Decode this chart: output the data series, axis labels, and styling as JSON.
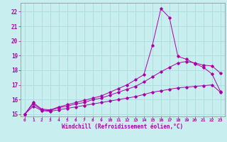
{
  "xlabel": "Windchill (Refroidissement éolien,°C)",
  "bg_color": "#c8eef0",
  "grid_color": "#aadddd",
  "line_color": "#aa00aa",
  "xlim": [
    -0.5,
    23.5
  ],
  "ylim": [
    14.85,
    22.6
  ],
  "yticks": [
    15,
    16,
    17,
    18,
    19,
    20,
    21,
    22
  ],
  "xticks": [
    0,
    1,
    2,
    3,
    4,
    5,
    6,
    7,
    8,
    9,
    10,
    11,
    12,
    13,
    14,
    15,
    16,
    17,
    18,
    19,
    20,
    21,
    22,
    23
  ],
  "line1_x": [
    0,
    1,
    2,
    3,
    4,
    5,
    6,
    7,
    8,
    9,
    10,
    11,
    12,
    13,
    14,
    15,
    16,
    17,
    18,
    19,
    20,
    21,
    22,
    23
  ],
  "line1_y": [
    15.0,
    15.55,
    15.25,
    15.2,
    15.3,
    15.4,
    15.5,
    15.6,
    15.7,
    15.8,
    15.9,
    16.0,
    16.1,
    16.2,
    16.35,
    16.5,
    16.6,
    16.7,
    16.8,
    16.85,
    16.9,
    16.95,
    17.0,
    16.5
  ],
  "line2_x": [
    0,
    1,
    2,
    3,
    4,
    5,
    6,
    7,
    8,
    9,
    10,
    11,
    12,
    13,
    14,
    15,
    16,
    17,
    18,
    19,
    20,
    21,
    22,
    23
  ],
  "line2_y": [
    15.0,
    15.7,
    15.3,
    15.25,
    15.45,
    15.55,
    15.7,
    15.8,
    16.0,
    16.1,
    16.3,
    16.5,
    16.7,
    16.9,
    17.2,
    17.55,
    17.9,
    18.2,
    18.5,
    18.6,
    18.5,
    18.35,
    18.3,
    17.8
  ],
  "line3_x": [
    0,
    1,
    2,
    3,
    4,
    5,
    6,
    7,
    8,
    9,
    10,
    11,
    12,
    13,
    14,
    15,
    16,
    17,
    18,
    19,
    20,
    21,
    22,
    23
  ],
  "line3_y": [
    15.0,
    15.8,
    15.35,
    15.3,
    15.5,
    15.65,
    15.8,
    15.95,
    16.1,
    16.25,
    16.5,
    16.75,
    17.0,
    17.35,
    17.7,
    19.7,
    22.2,
    21.6,
    18.95,
    18.75,
    18.45,
    18.2,
    17.75,
    16.55
  ]
}
